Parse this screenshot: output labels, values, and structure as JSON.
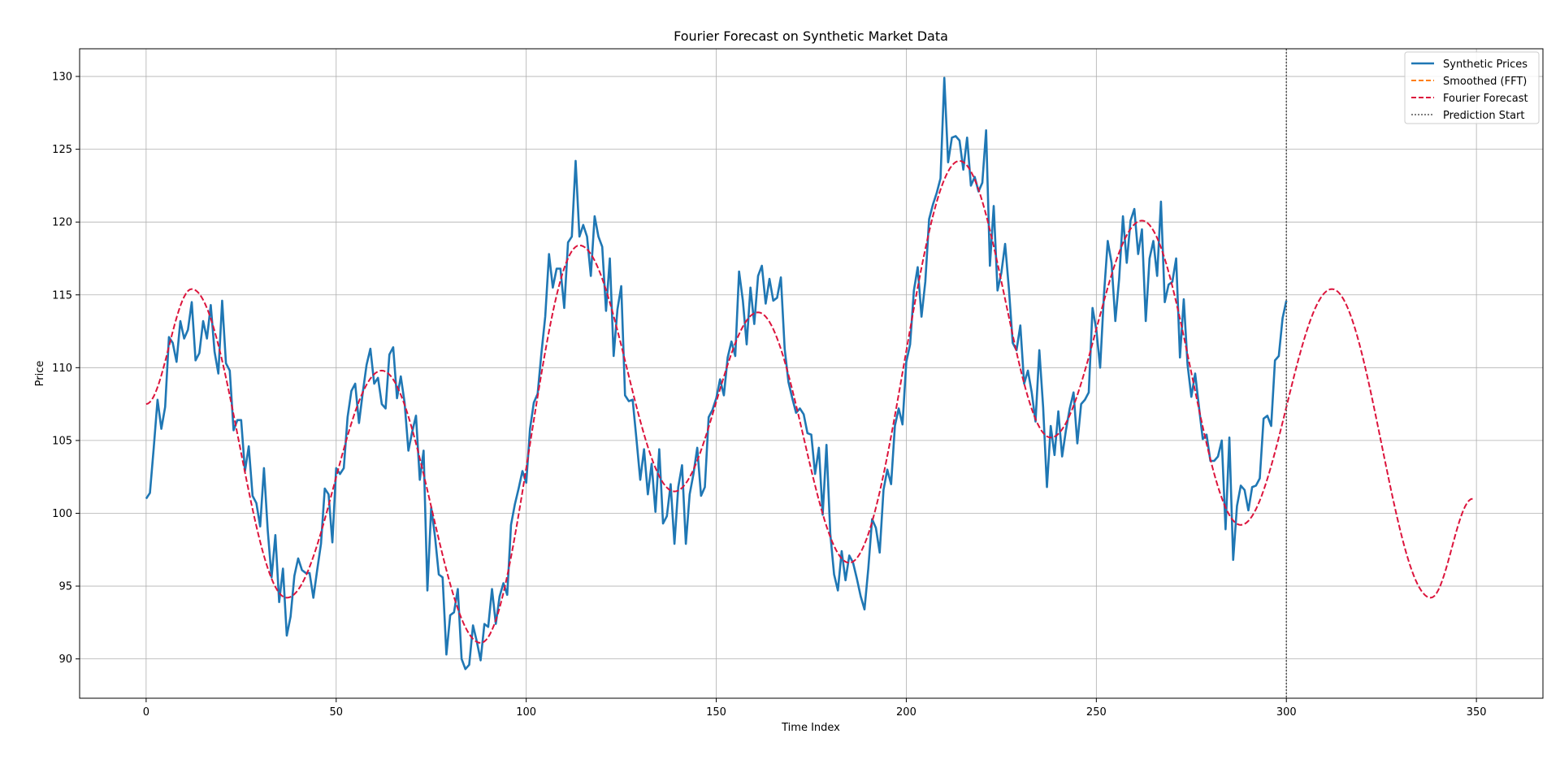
{
  "chart_data": {
    "type": "line",
    "title": "Fourier Forecast on Synthetic Market Data",
    "xlabel": "Time Index",
    "ylabel": "Price",
    "xlim": [
      -17.5,
      367.5
    ],
    "ylim": [
      87.3,
      131.9
    ],
    "xticks": [
      0,
      50,
      100,
      150,
      200,
      250,
      300,
      350
    ],
    "yticks": [
      90,
      95,
      100,
      105,
      110,
      115,
      120,
      125,
      130
    ],
    "grid": true,
    "legend_position": "top-right",
    "prediction_start": 300,
    "legend": [
      {
        "label": "Synthetic Prices",
        "color": "#1f77b4",
        "style": "solid"
      },
      {
        "label": "Smoothed (FFT)",
        "color": "#ff7f0e",
        "style": "dashed"
      },
      {
        "label": "Fourier Forecast",
        "color": "#dc143c",
        "style": "dashed"
      },
      {
        "label": "Prediction Start",
        "color": "#555555",
        "style": "dotted"
      }
    ],
    "series": [
      {
        "name": "Synthetic Prices",
        "color": "#1f77b4",
        "x_start": 0,
        "values": [
          101.0,
          101.4,
          104.5,
          107.8,
          105.8,
          107.3,
          112.1,
          111.7,
          110.4,
          113.2,
          112.0,
          112.6,
          114.5,
          110.5,
          111.0,
          113.2,
          112.0,
          114.3,
          111.1,
          109.6,
          114.6,
          110.3,
          109.8,
          105.7,
          106.4,
          106.4,
          102.9,
          104.6,
          101.2,
          100.7,
          99.1,
          103.1,
          98.8,
          95.6,
          98.5,
          93.9,
          96.2,
          91.6,
          92.9,
          95.7,
          96.9,
          96.1,
          95.9,
          95.9,
          94.2,
          96.1,
          97.9,
          101.7,
          101.3,
          98.0,
          103.1,
          102.7,
          103.1,
          106.6,
          108.4,
          108.9,
          106.2,
          108.3,
          110.2,
          111.3,
          108.9,
          109.3,
          107.5,
          107.2,
          110.9,
          111.4,
          107.9,
          109.4,
          107.6,
          104.3,
          105.6,
          106.7,
          102.3,
          104.3,
          94.7,
          100.4,
          98.4,
          95.8,
          95.6,
          90.3,
          93.0,
          93.2,
          94.8,
          90.0,
          89.3,
          89.6,
          92.3,
          91.2,
          89.9,
          92.4,
          92.2,
          94.8,
          92.4,
          94.3,
          95.2,
          94.4,
          99.2,
          100.6,
          101.7,
          102.9,
          102.1,
          105.8,
          107.6,
          108.2,
          111.0,
          113.5,
          117.8,
          115.5,
          116.8,
          116.8,
          114.1,
          118.6,
          119.0,
          124.2,
          119.0,
          119.8,
          119.0,
          116.3,
          120.4,
          119.0,
          118.3,
          113.9,
          117.5,
          110.8,
          114.0,
          115.6,
          108.1,
          107.7,
          107.8,
          105.1,
          102.3,
          104.4,
          101.3,
          103.4,
          100.1,
          104.4,
          99.3,
          99.8,
          102.0,
          97.9,
          101.8,
          103.3,
          97.9,
          101.3,
          102.7,
          104.5,
          101.2,
          101.8,
          106.6,
          107.1,
          107.9,
          109.2,
          108.1,
          110.7,
          111.8,
          110.8,
          116.6,
          114.6,
          111.6,
          115.5,
          113.0,
          116.3,
          117.0,
          114.4,
          116.1,
          114.6,
          114.8,
          116.2,
          111.3,
          109.0,
          107.9,
          106.9,
          107.2,
          106.8,
          105.5,
          105.4,
          102.7,
          104.5,
          99.9,
          104.7,
          98.6,
          95.8,
          94.7,
          97.4,
          95.4,
          97.1,
          96.6,
          95.5,
          94.3,
          93.4,
          96.2,
          99.6,
          99.0,
          97.3,
          101.6,
          103.0,
          102.0,
          106.0,
          107.2,
          106.1,
          110.4,
          111.6,
          115.3,
          116.9,
          113.5,
          115.9,
          120.2,
          121.2,
          122.0,
          123.0,
          129.9,
          124.1,
          125.8,
          125.9,
          125.6,
          123.6,
          125.8,
          122.5,
          123.1,
          122.1,
          122.7,
          126.3,
          117.0,
          121.1,
          115.3,
          116.5,
          118.5,
          115.4,
          111.7,
          111.2,
          112.9,
          108.9,
          109.8,
          108.3,
          106.3,
          111.2,
          107.3,
          101.8,
          106.0,
          104.0,
          107.0,
          103.9,
          105.7,
          107.2,
          108.3,
          104.8,
          107.5,
          107.8,
          108.3,
          114.1,
          112.6,
          110.0,
          115.0,
          118.7,
          117.2,
          113.2,
          116.1,
          120.4,
          117.2,
          120.1,
          120.9,
          117.8,
          119.5,
          113.2,
          117.5,
          118.7,
          116.3,
          121.4,
          114.5,
          115.7,
          115.9,
          117.5,
          110.7,
          114.7,
          110.2,
          108.0,
          109.6,
          107.3,
          105.1,
          105.4,
          103.6,
          103.6,
          103.9,
          105.0,
          98.9,
          105.2,
          96.8,
          100.5,
          101.9,
          101.6,
          100.2,
          101.8,
          101.9,
          102.4,
          106.5,
          106.7,
          106.0,
          110.5,
          110.8,
          113.4,
          114.6
        ]
      },
      {
        "name": "Fourier Forecast",
        "color": "#dc143c",
        "x": [
          0,
          12,
          37,
          62,
          88,
          114,
          139,
          161,
          185,
          214,
          238,
          262,
          288,
          312,
          338,
          349
        ],
        "y": [
          107.5,
          115.4,
          94.2,
          109.8,
          91.1,
          118.4,
          101.5,
          113.8,
          96.6,
          124.2,
          105.2,
          120.1,
          99.2,
          115.4,
          94.2,
          101.0
        ]
      }
    ]
  }
}
